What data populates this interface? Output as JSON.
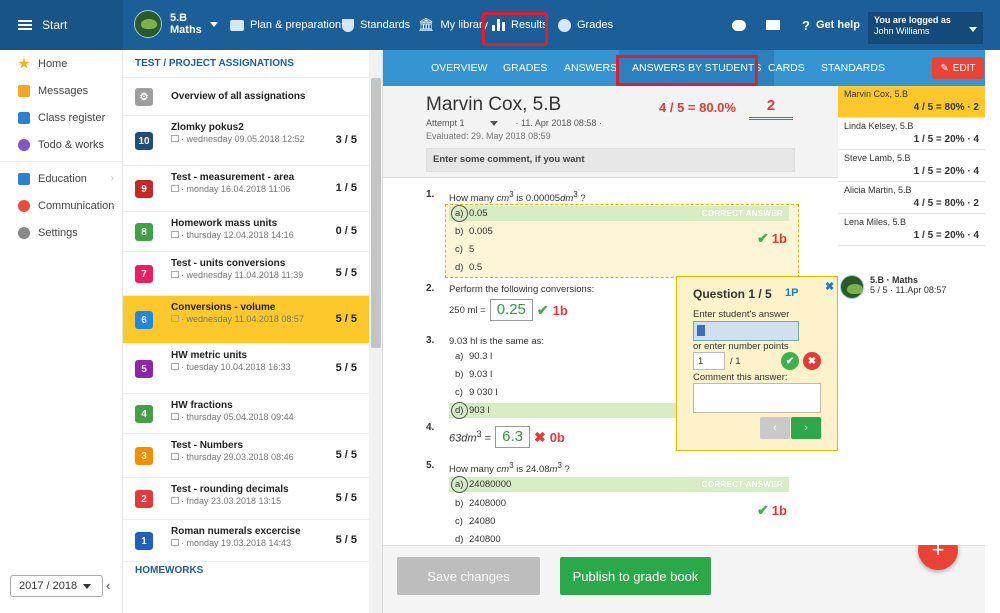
{
  "topbar": {
    "start_label": "Start",
    "class_name": "5.B",
    "class_subject": "Maths",
    "nav": [
      {
        "label": "Plan & preparations"
      },
      {
        "label": "Standards"
      },
      {
        "label": "My library"
      },
      {
        "label": "Results"
      },
      {
        "label": "Grades"
      }
    ],
    "help_label": "Get help",
    "logged_as": "You are logged as",
    "user_name": "John Williams"
  },
  "sidebar": {
    "items": [
      {
        "label": "Home",
        "color": "#f5b400"
      },
      {
        "label": "Messages",
        "color": "#f5a623"
      },
      {
        "label": "Class register",
        "color": "#2f7fd1"
      },
      {
        "label": "Todo & works",
        "color": "#7e57c2"
      },
      {
        "label": "Education",
        "color": "#2f7fd1"
      },
      {
        "label": "Communication",
        "color": "#e74c3c"
      },
      {
        "label": "Settings",
        "color": "#888888"
      }
    ],
    "year": "2017 / 2018"
  },
  "assignments": {
    "header": "TEST / PROJECT ASSIGNATIONS",
    "overview": "Overview of all assignations",
    "items": [
      {
        "num": "10",
        "color": "#1f4e79",
        "title": "Zlomky pokus2",
        "sub": "· wednesday 09.05.2018 12:52",
        "score": "3 / 5"
      },
      {
        "num": "9",
        "color": "#c62828",
        "title": "Test - measurement - area",
        "sub": "· monday 16.04.2018 11:06",
        "score": "1 / 5"
      },
      {
        "num": "8",
        "color": "#43a047",
        "title": "Homework mass units",
        "sub": "· thursday 12.04.2018 14:16",
        "score": "0 / 5"
      },
      {
        "num": "7",
        "color": "#e91e63",
        "title": "Test - units conversions",
        "sub": "· wednesday 11.04.2018 11:39",
        "score": "5 / 5"
      },
      {
        "num": "6",
        "color": "#1e88e5",
        "title": "Conversions - volume",
        "sub": "· wednesday 11.04.2018 08:57",
        "score": "5 / 5"
      },
      {
        "num": "5",
        "color": "#8e24aa",
        "title": "HW metric units",
        "sub": "· tuesday 10.04.2018 16:33",
        "score": "5 / 5"
      },
      {
        "num": "4",
        "color": "#43a047",
        "title": "HW fractions",
        "sub": "· thursday 05.04.2018 09:44",
        "score": ""
      },
      {
        "num": "3",
        "color": "#fb8c00",
        "title": "Test - Numbers",
        "sub": "· thursday 29.03.2018 08:46",
        "score": "5 / 5"
      },
      {
        "num": "2",
        "color": "#e53935",
        "title": "Test - rounding decimals",
        "sub": "· friday 23.03.2018 13:15",
        "score": "5 / 5"
      },
      {
        "num": "1",
        "color": "#1e5fbf",
        "title": "Roman numerals excercise",
        "sub": "· monday 19.03.2018 14:43",
        "score": "5 / 5"
      }
    ],
    "homeworks": "HOMEWORKS"
  },
  "tabs": [
    "OVERVIEW",
    "GRADES",
    "ANSWERS",
    "ANSWERS BY STUDENTS",
    "CARDS",
    "STANDARDS"
  ],
  "edit_label": "EDIT",
  "student": {
    "name": "Marvin Cox, 5.B",
    "score": "4 / 5 = 80.0%",
    "grade": "2",
    "attempt": "Attempt 1",
    "attempt_date": "· 11. Apr 2018 08:58 ·",
    "evaluated": "Evaluated: 29. May 2018 08:59",
    "comment_placeholder": "Enter some comment, if you want"
  },
  "questions": {
    "q1": {
      "n": "1.",
      "text_a": "How many ",
      "text_b": " is 0.00005",
      "text_c": " ?",
      "opts": [
        "0.05",
        "0.005",
        "5",
        "0.5"
      ],
      "letters": [
        "a)",
        "b)",
        "c)",
        "d)"
      ],
      "correct": "CORRECT ANSWER",
      "points": "1b"
    },
    "q2": {
      "n": "2.",
      "text": "Perform the following conversions:",
      "prefix": "250 ml =",
      "answer": "0.25",
      "points": "1b"
    },
    "q3": {
      "n": "3.",
      "text": "9.03 hl is the same as:",
      "opts": [
        "90.3 l",
        "9.03 l",
        "9 030 l",
        "903 l"
      ],
      "letters": [
        "a)",
        "b)",
        "c)",
        "d)"
      ]
    },
    "q4": {
      "n": "4.",
      "prefix": "63",
      "answer": "6.3",
      "points": "0b"
    },
    "q5": {
      "n": "5.",
      "text_a": "How many ",
      "text_b": " is 24.08",
      "text_c": " ?",
      "opts": [
        "24080000",
        "2408000",
        "24080",
        "240800"
      ],
      "letters": [
        "a)",
        "b)",
        "c)",
        "d)"
      ],
      "correct": "CORRECT ANSWER",
      "points": "1b"
    }
  },
  "popup": {
    "title": "Question 1 / 5",
    "points": "1P",
    "enter_answer": "Enter student's answer",
    "or_points": "or enter number points",
    "points_value": "1",
    "points_of": "/ 1",
    "comment_label": "Comment this answer:"
  },
  "bottom": {
    "save": "Save changes",
    "publish": "Publish to grade book"
  },
  "students": [
    {
      "name": "Marvin Cox, 5.B",
      "score": "4 / 5 = 80% · 2"
    },
    {
      "name": "Linda Kelsey, 5.B",
      "score": "1 / 5 = 20% · 4"
    },
    {
      "name": "Steve Lamb, 5.B",
      "score": "1 / 5 = 20% · 4"
    },
    {
      "name": "Alicia Martin, 5.B",
      "score": "4 / 5 = 80% · 2"
    },
    {
      "name": "Lena Miles, 5.B",
      "score": "1 / 5 = 20% · 4"
    }
  ],
  "class_item": {
    "title": "5.B · Maths",
    "sub": "5 / 5 · 11.Apr 08:57"
  }
}
